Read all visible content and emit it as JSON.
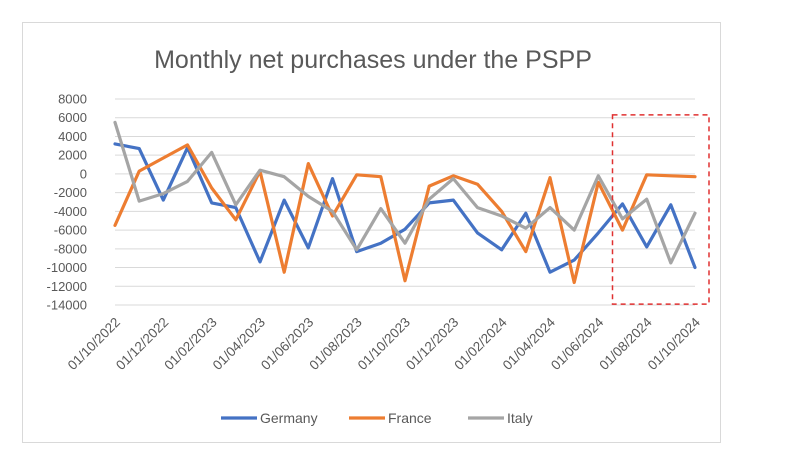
{
  "chart_data": {
    "type": "line",
    "title": "Monthly net purchases under the PSPP",
    "xlabel": "",
    "ylabel": "",
    "ylim": [
      -14000,
      8000
    ],
    "yticks": [
      8000,
      6000,
      4000,
      2000,
      0,
      -2000,
      -4000,
      -6000,
      -8000,
      -10000,
      -12000,
      -14000
    ],
    "ytick_labels": [
      "8000",
      "6000",
      "4000",
      "2000",
      "0",
      "-2000",
      "-4000",
      "-6000",
      "-8000",
      "-10000",
      "-12000",
      "-14000"
    ],
    "categories": [
      "01/10/2022",
      "01/11/2022",
      "01/12/2022",
      "01/01/2023",
      "01/02/2023",
      "01/03/2023",
      "01/04/2023",
      "01/05/2023",
      "01/06/2023",
      "01/07/2023",
      "01/08/2023",
      "01/09/2023",
      "01/10/2023",
      "01/11/2023",
      "01/12/2023",
      "01/01/2024",
      "01/02/2024",
      "01/03/2024",
      "01/04/2024",
      "01/05/2024",
      "01/06/2024",
      "01/07/2024",
      "01/08/2024",
      "01/09/2024",
      "01/10/2024"
    ],
    "visible_tick_labels": [
      "01/10/2022",
      "01/12/2022",
      "01/02/2023",
      "01/04/2023",
      "01/06/2023",
      "01/08/2023",
      "01/10/2023",
      "01/12/2023",
      "01/02/2024",
      "01/04/2024",
      "01/06/2024",
      "01/08/2024",
      "01/10/2024"
    ],
    "series": [
      {
        "name": "Germany",
        "color": "#4472c4",
        "values": [
          3200,
          2700,
          -2800,
          2800,
          -3100,
          -3600,
          -9400,
          -2800,
          -7900,
          -500,
          -8300,
          -7400,
          -5900,
          -3100,
          -2800,
          -6300,
          -8100,
          -4200,
          -10500,
          -9200,
          -6300,
          -3200,
          -7800,
          -3300,
          -10000
        ]
      },
      {
        "name": "France",
        "color": "#ed7d31",
        "values": [
          -5500,
          300,
          1700,
          3100,
          -1500,
          -4900,
          300,
          -10500,
          1100,
          -4500,
          -100,
          -300,
          -11400,
          -1300,
          -200,
          -1100,
          -4000,
          -8300,
          -400,
          -11600,
          -900,
          -6000,
          -100,
          -200,
          -300
        ]
      },
      {
        "name": "Italy",
        "color": "#a5a5a5",
        "values": [
          5500,
          -2900,
          -2100,
          -800,
          2300,
          -3300,
          400,
          -300,
          -2400,
          -4000,
          -8100,
          -3700,
          -7400,
          -2700,
          -500,
          -3600,
          -4500,
          -5800,
          -3600,
          -6000,
          -200,
          -4800,
          -2700,
          -9500,
          -4200
        ]
      }
    ],
    "annotations": [
      {
        "type": "dashed-box",
        "color": "#e03030",
        "covers": "01/07/2024 to 01/10/2024"
      }
    ],
    "legend": {
      "placement": "bottom-center",
      "entries": [
        "Germany",
        "France",
        "Italy"
      ]
    },
    "grid": true
  }
}
